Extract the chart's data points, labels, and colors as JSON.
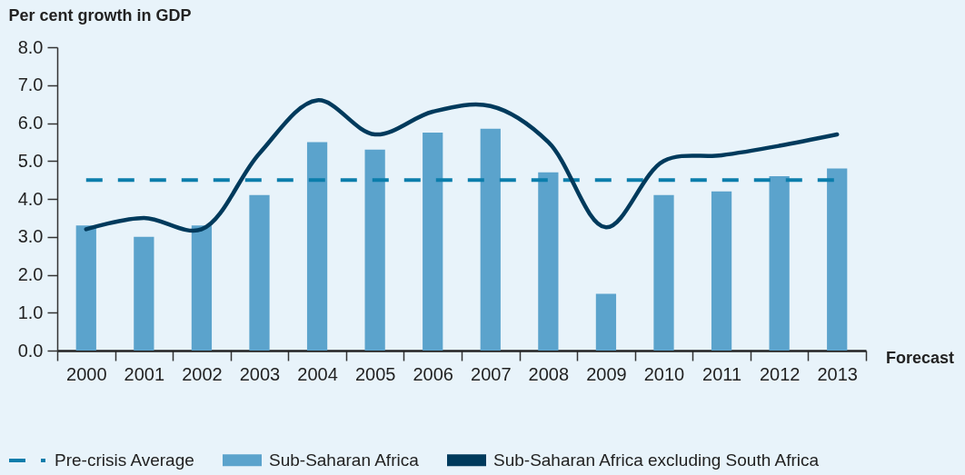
{
  "chart_data": {
    "type": "bar",
    "ylabel": "Per cent growth in GDP",
    "categories": [
      "2000",
      "2001",
      "2002",
      "2003",
      "2004",
      "2005",
      "2006",
      "2007",
      "2008",
      "2009",
      "2010",
      "2011",
      "2012",
      "2013"
    ],
    "series": [
      {
        "name": "Sub-Saharan Africa",
        "type": "bar",
        "color": "#5ba3cc",
        "values": [
          3.3,
          3.0,
          3.3,
          4.1,
          5.5,
          5.3,
          5.75,
          5.85,
          4.7,
          1.5,
          4.1,
          4.2,
          4.6,
          4.8
        ]
      },
      {
        "name": "Sub-Saharan Africa excluding South Africa",
        "type": "line",
        "color": "#003a5c",
        "values": [
          3.2,
          3.5,
          3.2,
          5.2,
          6.6,
          5.7,
          6.3,
          6.45,
          5.5,
          3.25,
          5.0,
          5.15,
          5.4,
          5.7
        ]
      }
    ],
    "ylim": [
      0,
      8
    ],
    "yticks": [
      {
        "value": 0,
        "label": "0.0"
      },
      {
        "value": 1,
        "label": "1.0"
      },
      {
        "value": 2,
        "label": "2.0"
      },
      {
        "value": 3,
        "label": "3.0"
      },
      {
        "value": 4,
        "label": "4.0"
      },
      {
        "value": 5,
        "label": "5.0"
      },
      {
        "value": 6,
        "label": "6.0"
      },
      {
        "value": 7,
        "label": "7.0"
      },
      {
        "value": 8,
        "label": "8.0"
      }
    ],
    "ref_lines": [
      {
        "axis": "y",
        "value": 4.5,
        "label": "Pre-crisis Average",
        "color": "#0b7dab",
        "line_style": "dashed"
      }
    ],
    "annotations": [
      "Forecast"
    ],
    "legend": "bottom",
    "grid": false
  }
}
